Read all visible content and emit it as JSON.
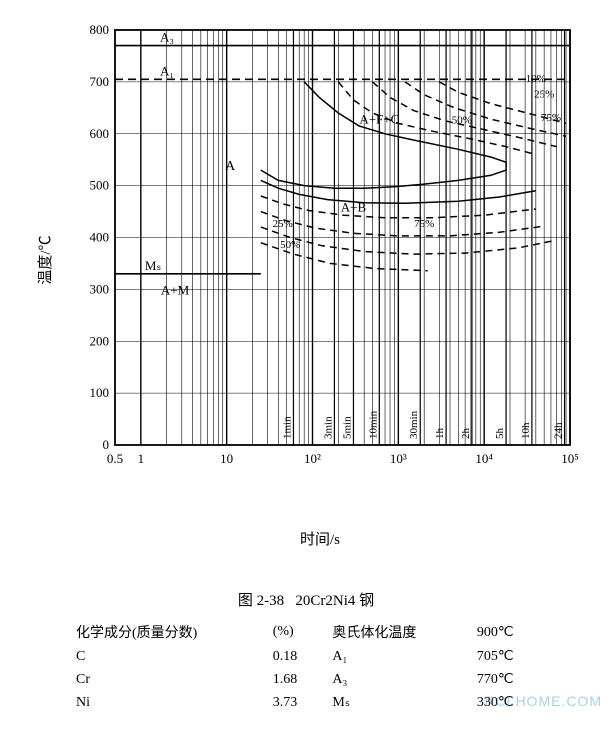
{
  "chart": {
    "type": "ttt-diagram",
    "background_color": "#ffffff",
    "axis_color": "#000000",
    "grid_color": "#000000",
    "font": "Times New Roman",
    "x": {
      "label": "时间/s",
      "scale": "log",
      "min": 0.5,
      "max": 100000,
      "ticks": [
        0.5,
        1,
        10,
        100,
        1000,
        10000,
        100000
      ],
      "tick_labels": [
        "0.5",
        "1",
        "10",
        "10²",
        "10³",
        "10⁴",
        "10⁵"
      ],
      "minor_per_decade": [
        2,
        3,
        4,
        5,
        6,
        7,
        8,
        9
      ],
      "secondary_marks": [
        {
          "value": 60,
          "label": "1min"
        },
        {
          "value": 180,
          "label": "3min"
        },
        {
          "value": 300,
          "label": "5min"
        },
        {
          "value": 600,
          "label": "10min"
        },
        {
          "value": 1800,
          "label": "30min"
        },
        {
          "value": 3600,
          "label": "1h"
        },
        {
          "value": 7200,
          "label": "2h"
        },
        {
          "value": 18000,
          "label": "5h"
        },
        {
          "value": 36000,
          "label": "10h"
        },
        {
          "value": 86400,
          "label": "24h"
        }
      ]
    },
    "y": {
      "label": "温度/℃",
      "scale": "linear",
      "min": 0,
      "max": 800,
      "tick_step": 100
    },
    "horizontal_lines": [
      {
        "temp": 770,
        "label": "A₃",
        "style": "solid",
        "label_x": 1.5
      },
      {
        "temp": 705,
        "label": "A₁",
        "style": "dashed",
        "label_x": 1.5
      },
      {
        "temp": 330,
        "label": "Mₛ",
        "style": "solid",
        "label_x": 1.0,
        "to_time": 25
      }
    ],
    "region_labels": [
      {
        "text": "A",
        "time": 11,
        "temp": 530,
        "fs": 14
      },
      {
        "text": "A+F+C",
        "time": 600,
        "temp": 620,
        "fs": 13
      },
      {
        "text": "A+B",
        "time": 300,
        "temp": 450,
        "fs": 13
      },
      {
        "text": "A+M",
        "time": 2.5,
        "temp": 290,
        "fs": 13
      },
      {
        "text": "10%",
        "time": 40000,
        "temp": 700,
        "fs": 11
      },
      {
        "text": "25%",
        "time": 50000,
        "temp": 670,
        "fs": 11
      },
      {
        "text": "50%",
        "time": 5500,
        "temp": 620,
        "fs": 11
      },
      {
        "text": "75%",
        "time": 60000,
        "temp": 625,
        "fs": 11
      },
      {
        "text": "25%",
        "time": 45,
        "temp": 420,
        "fs": 11
      },
      {
        "text": "50%",
        "time": 55,
        "temp": 380,
        "fs": 11
      },
      {
        "text": "75%",
        "time": 2000,
        "temp": 420,
        "fs": 11
      }
    ],
    "curves": [
      {
        "style": "solid",
        "pts": [
          [
            80,
            700
          ],
          [
            120,
            670
          ],
          [
            200,
            640
          ],
          [
            350,
            615
          ],
          [
            700,
            600
          ],
          [
            1500,
            588
          ],
          [
            5000,
            570
          ],
          [
            12000,
            555
          ],
          [
            18000,
            545
          ],
          [
            18000,
            530
          ],
          [
            12000,
            520
          ],
          [
            5000,
            510
          ],
          [
            2000,
            503
          ],
          [
            900,
            498
          ],
          [
            400,
            495
          ],
          [
            180,
            495
          ],
          [
            80,
            500
          ],
          [
            40,
            510
          ],
          [
            25,
            530
          ]
        ]
      },
      {
        "style": "dash",
        "pts": [
          [
            200,
            700
          ],
          [
            300,
            665
          ],
          [
            500,
            640
          ],
          [
            1000,
            620
          ],
          [
            2500,
            605
          ],
          [
            7000,
            590
          ],
          [
            18000,
            575
          ],
          [
            40000,
            560
          ]
        ]
      },
      {
        "style": "dash",
        "pts": [
          [
            500,
            700
          ],
          [
            800,
            670
          ],
          [
            1500,
            645
          ],
          [
            3500,
            625
          ],
          [
            10000,
            608
          ],
          [
            30000,
            590
          ],
          [
            70000,
            575
          ]
        ]
      },
      {
        "style": "dash",
        "pts": [
          [
            1200,
            700
          ],
          [
            2000,
            675
          ],
          [
            4500,
            650
          ],
          [
            12000,
            628
          ],
          [
            35000,
            610
          ],
          [
            90000,
            595
          ]
        ]
      },
      {
        "style": "dash",
        "pts": [
          [
            3000,
            700
          ],
          [
            5000,
            680
          ],
          [
            12000,
            658
          ],
          [
            35000,
            638
          ],
          [
            90000,
            620
          ]
        ]
      },
      {
        "style": "solid",
        "pts": [
          [
            25,
            510
          ],
          [
            40,
            495
          ],
          [
            70,
            483
          ],
          [
            150,
            473
          ],
          [
            400,
            467
          ],
          [
            1200,
            466
          ],
          [
            5000,
            470
          ],
          [
            15000,
            478
          ],
          [
            40000,
            490
          ]
        ]
      },
      {
        "style": "dash",
        "pts": [
          [
            25,
            480
          ],
          [
            45,
            465
          ],
          [
            90,
            452
          ],
          [
            230,
            443
          ],
          [
            700,
            438
          ],
          [
            2500,
            438
          ],
          [
            10000,
            443
          ],
          [
            40000,
            455
          ]
        ]
      },
      {
        "style": "dash",
        "pts": [
          [
            25,
            450
          ],
          [
            50,
            432
          ],
          [
            110,
            418
          ],
          [
            300,
            408
          ],
          [
            1000,
            403
          ],
          [
            4000,
            403
          ],
          [
            15000,
            410
          ],
          [
            50000,
            422
          ]
        ]
      },
      {
        "style": "dash",
        "pts": [
          [
            25,
            420
          ],
          [
            55,
            400
          ],
          [
            130,
            384
          ],
          [
            400,
            373
          ],
          [
            1500,
            368
          ],
          [
            6000,
            370
          ],
          [
            25000,
            380
          ],
          [
            70000,
            395
          ]
        ]
      },
      {
        "style": "dash",
        "pts": [
          [
            25,
            390
          ],
          [
            60,
            368
          ],
          [
            160,
            350
          ],
          [
            550,
            340
          ],
          [
            2200,
            336
          ]
        ]
      }
    ]
  },
  "caption": {
    "fig_no": "图 2-38",
    "material": "20Cr2Ni4 钢"
  },
  "composition": {
    "header_left": "化学成分(质量分数)",
    "header_pct": "(%)",
    "header_right": "奥氏体化温度",
    "aust_temp": "900℃",
    "rows": [
      {
        "el": "C",
        "val": "0.18",
        "param": "A₁",
        "pval": "705℃"
      },
      {
        "el": "Cr",
        "val": "1.68",
        "param": "A₃",
        "pval": "770℃"
      },
      {
        "el": "Ni",
        "val": "3.73",
        "param": "Mₛ",
        "pval": "330℃"
      }
    ]
  },
  "watermark": "RCLHOME.COM"
}
